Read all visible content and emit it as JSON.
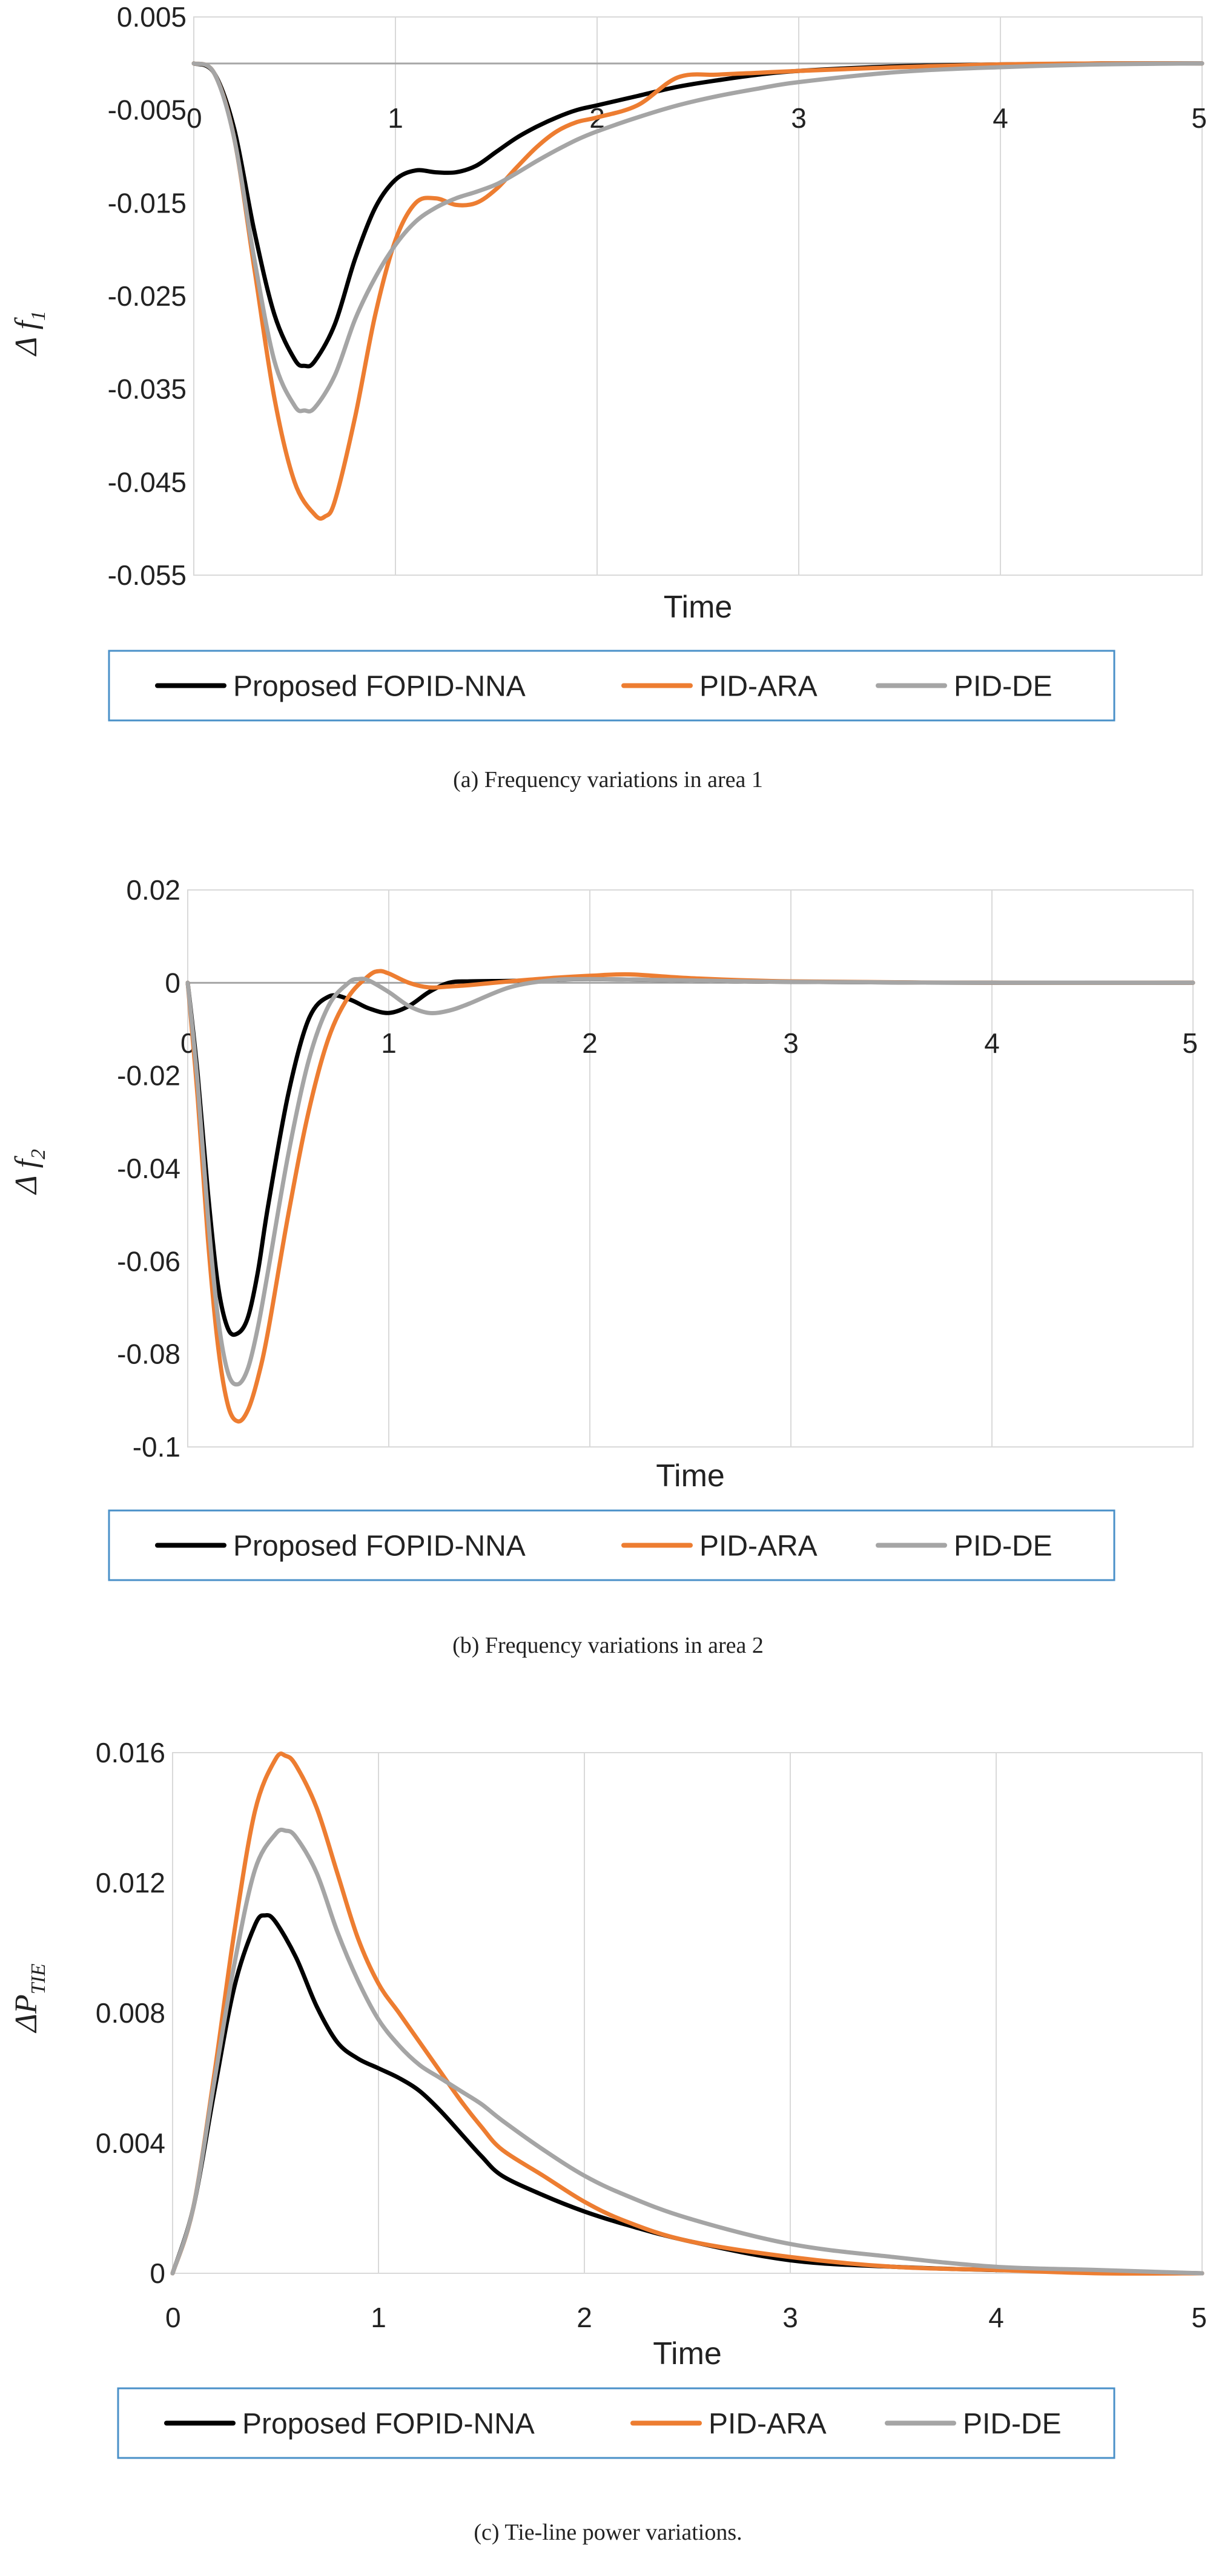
{
  "chart_data": [
    {
      "type": "line",
      "title": "",
      "caption": "(a) Frequency variations in area 1",
      "xlabel": "Time",
      "ylabel": "Δ f",
      "ylabel_sub": "1",
      "xlim": [
        0,
        5
      ],
      "ylim": [
        -0.055,
        0.005
      ],
      "xticks": [
        "0",
        "1",
        "2",
        "3",
        "4",
        "5"
      ],
      "yticks": [
        "0.005",
        "-0.005",
        "-0.015",
        "-0.025",
        "-0.035",
        "-0.045",
        "-0.055"
      ],
      "grid": true,
      "legend_position": "bottom",
      "series": [
        {
          "name": "Proposed FOPID-NNA",
          "color": "#000000",
          "x": [
            0,
            0.1,
            0.2,
            0.3,
            0.4,
            0.5,
            0.55,
            0.6,
            0.7,
            0.8,
            0.9,
            1.0,
            1.1,
            1.2,
            1.3,
            1.4,
            1.5,
            1.6,
            1.7,
            1.8,
            1.9,
            2.0,
            2.2,
            2.4,
            2.6,
            2.8,
            3.0,
            3.5,
            4.0,
            4.5,
            5.0
          ],
          "y": [
            0,
            -0.001,
            -0.007,
            -0.018,
            -0.027,
            -0.0318,
            -0.0325,
            -0.032,
            -0.028,
            -0.021,
            -0.0155,
            -0.0125,
            -0.0115,
            -0.0117,
            -0.0117,
            -0.011,
            -0.0095,
            -0.008,
            -0.0068,
            -0.0058,
            -0.005,
            -0.0045,
            -0.0035,
            -0.0025,
            -0.0018,
            -0.0012,
            -0.0008,
            -0.0003,
            -0.0001,
            0,
            0
          ]
        },
        {
          "name": "PID-ARA",
          "color": "#ED7D31",
          "x": [
            0,
            0.1,
            0.2,
            0.3,
            0.4,
            0.5,
            0.6,
            0.65,
            0.7,
            0.8,
            0.9,
            1.0,
            1.1,
            1.2,
            1.3,
            1.4,
            1.5,
            1.6,
            1.7,
            1.8,
            1.9,
            2.0,
            2.2,
            2.4,
            2.6,
            2.8,
            3.0,
            3.5,
            4.0,
            4.5,
            5.0
          ],
          "y": [
            0,
            -0.001,
            -0.008,
            -0.022,
            -0.036,
            -0.045,
            -0.0485,
            -0.0487,
            -0.047,
            -0.038,
            -0.027,
            -0.019,
            -0.015,
            -0.0145,
            -0.0152,
            -0.015,
            -0.0135,
            -0.0112,
            -0.009,
            -0.0073,
            -0.0063,
            -0.0058,
            -0.0045,
            -0.0015,
            -0.0012,
            -0.001,
            -0.0008,
            -0.0004,
            -0.0001,
            0,
            0
          ]
        },
        {
          "name": "PID-DE",
          "color": "#A5A5A5",
          "x": [
            0,
            0.1,
            0.2,
            0.3,
            0.4,
            0.5,
            0.55,
            0.6,
            0.7,
            0.8,
            0.9,
            1.0,
            1.1,
            1.2,
            1.3,
            1.4,
            1.5,
            1.6,
            1.7,
            1.8,
            1.9,
            2.0,
            2.2,
            2.4,
            2.6,
            2.8,
            3.0,
            3.5,
            4.0,
            4.5,
            5.0
          ],
          "y": [
            0,
            -0.001,
            -0.008,
            -0.021,
            -0.032,
            -0.0368,
            -0.0373,
            -0.037,
            -0.0335,
            -0.0275,
            -0.023,
            -0.0195,
            -0.017,
            -0.0155,
            -0.0145,
            -0.0138,
            -0.013,
            -0.0118,
            -0.0105,
            -0.0093,
            -0.0082,
            -0.0073,
            -0.0058,
            -0.0045,
            -0.0035,
            -0.0027,
            -0.002,
            -0.0009,
            -0.0004,
            -0.0001,
            0
          ]
        }
      ]
    },
    {
      "type": "line",
      "title": "",
      "caption": "(b) Frequency variations in area 2",
      "xlabel": "Time",
      "ylabel": "Δ f",
      "ylabel_sub": "2",
      "xlim": [
        0,
        5
      ],
      "ylim": [
        -0.1,
        0.02
      ],
      "xticks": [
        "0",
        "1",
        "2",
        "3",
        "4",
        "5"
      ],
      "yticks": [
        "0.02",
        "0",
        "-0.02",
        "-0.04",
        "-0.06",
        "-0.08",
        "-0.1"
      ],
      "grid": true,
      "legend_position": "bottom",
      "series": [
        {
          "name": "Proposed FOPID-NNA",
          "color": "#000000",
          "x": [
            0,
            0.05,
            0.1,
            0.15,
            0.2,
            0.25,
            0.3,
            0.35,
            0.4,
            0.5,
            0.6,
            0.7,
            0.8,
            0.9,
            1.0,
            1.1,
            1.2,
            1.3,
            1.4,
            1.6,
            1.8,
            2.0,
            2.5,
            3.0,
            4.0,
            5.0
          ],
          "y": [
            0,
            -0.02,
            -0.045,
            -0.065,
            -0.0745,
            -0.0755,
            -0.072,
            -0.062,
            -0.048,
            -0.024,
            -0.008,
            -0.003,
            -0.0035,
            -0.0055,
            -0.0065,
            -0.005,
            -0.002,
            0,
            0.0003,
            0.0004,
            0.0006,
            0.0008,
            0.0005,
            0.0002,
            0,
            0
          ]
        },
        {
          "name": "PID-ARA",
          "color": "#ED7D31",
          "x": [
            0,
            0.05,
            0.1,
            0.15,
            0.2,
            0.25,
            0.3,
            0.35,
            0.4,
            0.5,
            0.6,
            0.7,
            0.8,
            0.9,
            0.95,
            1.0,
            1.1,
            1.2,
            1.3,
            1.4,
            1.6,
            1.8,
            2.0,
            2.2,
            2.5,
            3.0,
            4.0,
            5.0
          ],
          "y": [
            0,
            -0.025,
            -0.055,
            -0.078,
            -0.091,
            -0.0945,
            -0.092,
            -0.085,
            -0.075,
            -0.05,
            -0.028,
            -0.012,
            -0.003,
            0.0015,
            0.0025,
            0.002,
            0,
            -0.001,
            -0.0008,
            -0.0005,
            0.0003,
            0.001,
            0.0015,
            0.0018,
            0.001,
            0.0003,
            0,
            0
          ]
        },
        {
          "name": "PID-DE",
          "color": "#A5A5A5",
          "x": [
            0,
            0.05,
            0.1,
            0.15,
            0.2,
            0.25,
            0.3,
            0.35,
            0.4,
            0.5,
            0.6,
            0.7,
            0.8,
            0.85,
            0.9,
            1.0,
            1.1,
            1.2,
            1.3,
            1.4,
            1.6,
            1.8,
            2.0,
            2.5,
            3.0,
            4.0,
            5.0
          ],
          "y": [
            0,
            -0.022,
            -0.05,
            -0.072,
            -0.084,
            -0.0865,
            -0.083,
            -0.074,
            -0.062,
            -0.037,
            -0.017,
            -0.005,
            0,
            0.0008,
            0.0005,
            -0.002,
            -0.005,
            -0.0065,
            -0.006,
            -0.0045,
            -0.001,
            0.0005,
            0.0008,
            0.0005,
            0.0002,
            0,
            0
          ]
        }
      ]
    },
    {
      "type": "line",
      "title": "",
      "caption": "(c) Tie-line power variations.",
      "xlabel": "Time",
      "ylabel": "ΔP",
      "ylabel_sub": "TIE",
      "xlim": [
        0,
        5
      ],
      "ylim": [
        0,
        0.016
      ],
      "xticks": [
        "0",
        "1",
        "2",
        "3",
        "4",
        "5"
      ],
      "yticks": [
        "0.016",
        "0.012",
        "0.008",
        "0.004",
        "0"
      ],
      "grid": true,
      "legend_position": "bottom",
      "series": [
        {
          "name": "Proposed FOPID-NNA",
          "color": "#000000",
          "x": [
            0,
            0.1,
            0.2,
            0.3,
            0.4,
            0.45,
            0.5,
            0.6,
            0.7,
            0.8,
            0.9,
            1.0,
            1.1,
            1.2,
            1.3,
            1.4,
            1.5,
            1.6,
            1.8,
            2.0,
            2.2,
            2.5,
            3.0,
            3.5,
            4.0,
            4.5,
            5.0
          ],
          "y": [
            0,
            0.002,
            0.0055,
            0.0088,
            0.0107,
            0.011,
            0.0108,
            0.0097,
            0.0082,
            0.0071,
            0.0066,
            0.0063,
            0.006,
            0.0056,
            0.005,
            0.0043,
            0.0036,
            0.003,
            0.0024,
            0.0019,
            0.0015,
            0.001,
            0.0004,
            0.0002,
            0.0001,
            5e-05,
            0
          ]
        },
        {
          "name": "PID-ARA",
          "color": "#ED7D31",
          "x": [
            0,
            0.1,
            0.2,
            0.3,
            0.4,
            0.5,
            0.55,
            0.6,
            0.7,
            0.8,
            0.9,
            1.0,
            1.1,
            1.2,
            1.3,
            1.4,
            1.5,
            1.6,
            1.8,
            2.0,
            2.2,
            2.5,
            3.0,
            3.5,
            4.0,
            4.5,
            5.0
          ],
          "y": [
            0,
            0.002,
            0.006,
            0.0105,
            0.0142,
            0.0158,
            0.0159,
            0.0156,
            0.0143,
            0.0123,
            0.0103,
            0.0089,
            0.008,
            0.0071,
            0.0062,
            0.0053,
            0.0045,
            0.0038,
            0.003,
            0.0022,
            0.0016,
            0.001,
            0.0005,
            0.0002,
            0.0001,
            0,
            0
          ]
        },
        {
          "name": "PID-DE",
          "color": "#A5A5A5",
          "x": [
            0,
            0.1,
            0.2,
            0.3,
            0.4,
            0.5,
            0.55,
            0.6,
            0.7,
            0.8,
            0.9,
            1.0,
            1.1,
            1.2,
            1.3,
            1.4,
            1.5,
            1.6,
            1.8,
            2.0,
            2.2,
            2.5,
            3.0,
            3.5,
            4.0,
            4.5,
            5.0
          ],
          "y": [
            0,
            0.002,
            0.0058,
            0.0095,
            0.0124,
            0.0135,
            0.0136,
            0.0134,
            0.0123,
            0.0105,
            0.009,
            0.0078,
            0.007,
            0.0064,
            0.006,
            0.0056,
            0.0052,
            0.0047,
            0.0038,
            0.003,
            0.0024,
            0.0017,
            0.0009,
            0.0005,
            0.0002,
            0.0001,
            0
          ]
        }
      ]
    }
  ]
}
